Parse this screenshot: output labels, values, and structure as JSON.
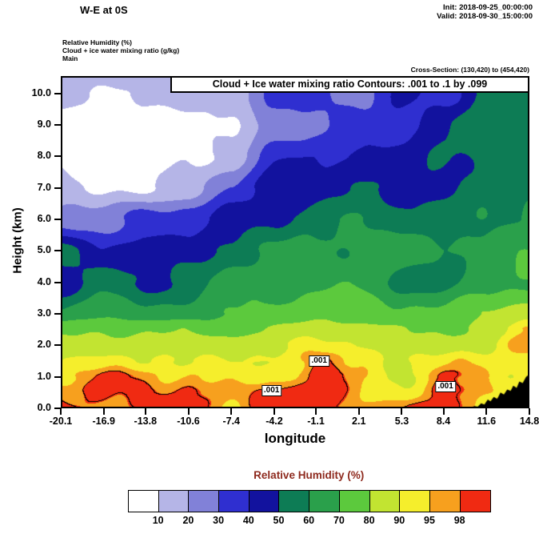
{
  "header": {
    "title": "W-E at 0S",
    "init": "Init: 2018-09-25_00:00:00",
    "valid": "Valid: 2018-09-30_15:00:00",
    "field1": "Relative Humidity  (%)",
    "field2": "Cloud + ice water mixing ratio  (g/kg)",
    "field3": "Main",
    "cross_section": "Cross-Section: (130,420) to (454,420)"
  },
  "chart_data": {
    "type": "heatmap",
    "subtype": "filled-contour-vertical-cross-section",
    "title": "Cloud + Ice water mixing ratio Contours: .001 to .1 by .099",
    "xlabel": "longitude",
    "ylabel": "Height (km)",
    "xlim": [
      -20.1,
      14.8
    ],
    "ylim": [
      0,
      10.55
    ],
    "x_ticks": [
      "-20.1",
      "-16.9",
      "-13.8",
      "-10.6",
      "-7.4",
      "-4.2",
      "-1.1",
      "2.1",
      "5.3",
      "8.4",
      "11.6",
      "14.8"
    ],
    "y_ticks": [
      "0.0",
      "1.0",
      "2.0",
      "3.0",
      "4.0",
      "5.0",
      "6.0",
      "7.0",
      "8.0",
      "9.0",
      "10.0"
    ],
    "levels": [
      10,
      20,
      30,
      40,
      50,
      60,
      70,
      80,
      90,
      95,
      98
    ],
    "colors": [
      "#ffffff",
      "#b5b5e7",
      "#8181d8",
      "#2f2fd0",
      "#12129e",
      "#0d7c55",
      "#2aa04b",
      "#5cc93d",
      "#c2e431",
      "#f5ee2c",
      "#f7a01e",
      "#f02a12"
    ],
    "grid": {
      "lons": [
        -20.1,
        -16.9,
        -13.8,
        -10.6,
        -7.4,
        -4.2,
        -1.1,
        2.1,
        5.3,
        8.4,
        11.6,
        14.8
      ],
      "heights": [
        0,
        0.5,
        1,
        1.5,
        2,
        2.5,
        3,
        4,
        5,
        6,
        7,
        8,
        9,
        10,
        10.55
      ],
      "rh": [
        [
          99,
          100,
          100,
          99,
          97,
          100,
          101,
          97,
          96,
          100,
          97,
          96
        ],
        [
          97,
          100,
          98,
          97,
          96,
          100,
          101,
          96,
          93,
          99,
          96,
          95
        ],
        [
          93,
          97,
          97,
          95,
          92,
          96,
          100,
          95,
          92,
          96,
          93,
          93
        ],
        [
          90,
          92,
          92,
          91,
          90,
          92,
          97,
          92,
          90,
          92,
          92,
          95
        ],
        [
          85,
          88,
          86,
          85,
          85,
          87,
          92,
          90,
          86,
          87,
          88,
          99
        ],
        [
          75,
          80,
          78,
          76,
          78,
          80,
          86,
          84,
          80,
          80,
          84,
          93
        ],
        [
          60,
          68,
          65,
          65,
          70,
          74,
          78,
          76,
          72,
          72,
          78,
          85
        ],
        [
          45,
          55,
          48,
          55,
          62,
          66,
          68,
          66,
          58,
          57,
          66,
          72
        ],
        [
          52,
          42,
          44,
          46,
          55,
          62,
          63,
          64,
          62,
          62,
          64,
          66
        ],
        [
          28,
          22,
          35,
          36,
          44,
          47,
          56,
          60,
          55,
          56,
          60,
          62
        ],
        [
          14,
          8,
          8,
          16,
          33,
          45,
          46,
          52,
          46,
          46,
          56,
          58
        ],
        [
          7,
          5,
          5,
          6,
          15,
          36,
          39,
          43,
          44,
          52,
          53,
          55
        ],
        [
          7,
          5,
          5,
          6,
          8,
          26,
          26,
          34,
          37,
          45,
          58,
          60
        ],
        [
          14,
          10,
          12,
          14,
          16,
          33,
          32,
          26,
          43,
          36,
          53,
          56
        ],
        [
          13,
          15,
          15,
          18,
          22,
          30,
          30,
          23,
          41,
          34,
          51,
          53
        ]
      ]
    },
    "cloud_contours": {
      "label": ".001",
      "labels": [
        {
          "lon": -4.4,
          "h": 0.55
        },
        {
          "lon": -0.85,
          "h": 1.5
        },
        {
          "lon": 8.55,
          "h": 0.68
        }
      ]
    },
    "terrain": [
      [
        10.4,
        0.0
      ],
      [
        10.7,
        0.07
      ],
      [
        10.95,
        0.05
      ],
      [
        11.2,
        0.16
      ],
      [
        11.45,
        0.12
      ],
      [
        11.7,
        0.28
      ],
      [
        11.9,
        0.22
      ],
      [
        12.15,
        0.36
      ],
      [
        12.4,
        0.3
      ],
      [
        12.65,
        0.5
      ],
      [
        12.9,
        0.44
      ],
      [
        13.15,
        0.6
      ],
      [
        13.4,
        0.55
      ],
      [
        13.6,
        0.72
      ],
      [
        13.85,
        0.65
      ],
      [
        14.05,
        0.85
      ],
      [
        14.3,
        0.8
      ],
      [
        14.55,
        1.0
      ],
      [
        14.8,
        1.08
      ]
    ],
    "legend": {
      "title": "Relative Humidity  (%)",
      "labels": [
        "10",
        "20",
        "30",
        "40",
        "50",
        "60",
        "70",
        "80",
        "90",
        "95",
        "98"
      ],
      "title_color": "#8e2a1e"
    }
  }
}
